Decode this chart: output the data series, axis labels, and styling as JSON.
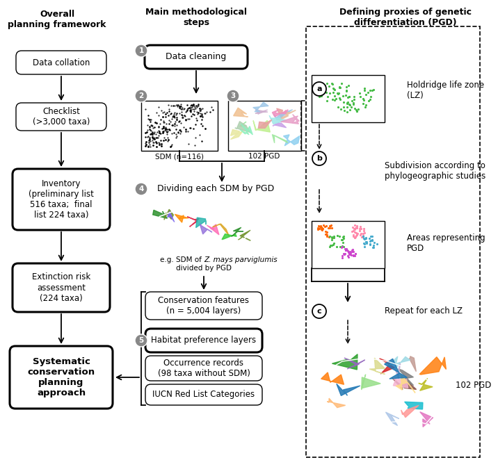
{
  "bg_color": "#ffffff",
  "left_header": "Overall\nplanning framework",
  "mid_header": "Main methodological\nsteps",
  "right_header": "Defining proxies of genetic\ndifferentiation (PGD)",
  "gray_circle_color": "#888888",
  "gray_circle_face": "#888888",
  "step_numbers": [
    "1",
    "2",
    "3",
    "4",
    "5"
  ],
  "pgd_labels": [
    "a",
    "b",
    "c"
  ],
  "sdm_label": "SDM (n=116)",
  "pgd102_label_mid": "102 PGD",
  "pgd102_label_right": "102 PGD",
  "step4_text": "Dividing each SDM by PGD",
  "step4_caption_line1": "e.g. SDM of ",
  "step4_caption_italic": "Z. mays parviglumis",
  "step4_caption_line2": "divided by PGD",
  "holdridge_text": "Holdridge life zone\n(LZ)",
  "subdiv_text": "Subdivision according to\nphylogeographic studies",
  "areas_text": "Areas representing\nPGD",
  "repeat_text": "Repeat for each LZ",
  "cons_feat_text": "Conservation features\n(n = 5,004 layers)",
  "habitat_text": "Habitat preference layers",
  "occurrence_text": "Occurrence records\n(98 taxa without SDM)",
  "iucn_text": "IUCN Red List Categories",
  "data_collation_text": "Data collation",
  "checklist_text": "Checklist\n(>3,000 taxa)",
  "inventory_text": "Inventory\n(preliminary list\n516 taxa;  final\nlist 224 taxa)",
  "extinction_text": "Extinction risk\nassessment\n(224 taxa)",
  "systematic_text": "Systematic\nconservation\nplanning\napproach",
  "data_cleaning_text": "Data cleaning"
}
